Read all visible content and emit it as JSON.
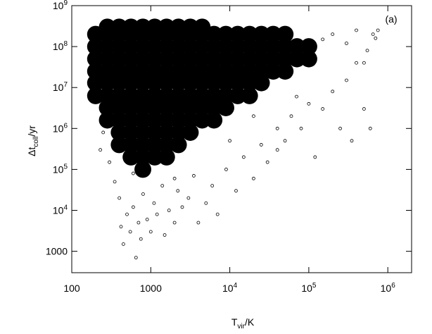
{
  "chart_data": {
    "type": "scatter",
    "xlabel": {
      "main": "T",
      "sub": "vir",
      "rest": "/K"
    },
    "ylabel": {
      "main": "Δt",
      "sub": "coll",
      "rest": "/yr"
    },
    "annotation": "(a)",
    "log_x": true,
    "log_y": true,
    "xlim": [
      100,
      2000000
    ],
    "ylim": [
      300,
      1000000000
    ],
    "xticks": [
      100,
      1000,
      {
        "value": 10000,
        "label": "10^4"
      },
      {
        "value": 100000,
        "label": "10^5"
      },
      {
        "value": 1000000,
        "label": "10^6"
      }
    ],
    "yticks": [
      1000,
      {
        "value": 10000,
        "label": "10^4"
      },
      {
        "value": 100000,
        "label": "10^5"
      },
      {
        "value": 1000000,
        "label": "10^6"
      },
      {
        "value": 10000000,
        "label": "10^7"
      },
      {
        "value": 100000000,
        "label": "10^8"
      },
      {
        "value": 1000000000,
        "label": "10^9"
      }
    ],
    "series": [
      {
        "color": "#000000",
        "marker": "filled",
        "marker_size": 12,
        "x": [
          200,
          200,
          200,
          200,
          200,
          200,
          282,
          282,
          282,
          282,
          282,
          282,
          282,
          282,
          282,
          398,
          398,
          398,
          398,
          398,
          398,
          398,
          398,
          398,
          398,
          398,
          562,
          562,
          562,
          562,
          562,
          562,
          562,
          562,
          562,
          562,
          562,
          562,
          794,
          794,
          794,
          794,
          794,
          794,
          794,
          794,
          794,
          794,
          794,
          794,
          794,
          1122,
          1122,
          1122,
          1122,
          1122,
          1122,
          1122,
          1122,
          1122,
          1122,
          1122,
          1122,
          1585,
          1585,
          1585,
          1585,
          1585,
          1585,
          1585,
          1585,
          1585,
          1585,
          1585,
          1585,
          2239,
          2239,
          2239,
          2239,
          2239,
          2239,
          2239,
          2239,
          2239,
          2239,
          2239,
          3162,
          3162,
          3162,
          3162,
          3162,
          3162,
          3162,
          3162,
          3162,
          3162,
          4467,
          4467,
          4467,
          4467,
          4467,
          4467,
          4467,
          4467,
          4467,
          6310,
          6310,
          6310,
          6310,
          6310,
          6310,
          6310,
          6310,
          8913,
          8913,
          8913,
          8913,
          8913,
          8913,
          8913,
          12589,
          12589,
          12589,
          12589,
          12589,
          12589,
          17783,
          17783,
          17783,
          17783,
          17783,
          17783,
          25119,
          25119,
          25119,
          25119,
          25119,
          35481,
          35481,
          35481,
          35481,
          50119,
          50119,
          50119,
          50119,
          70795,
          70795,
          100000,
          100000
        ],
        "values": [
          6300000,
          13000000,
          25000000,
          50000000,
          100000000,
          200000000,
          1600000,
          3200000,
          6300000,
          13000000,
          25000000,
          50000000,
          100000000,
          200000000,
          300000000,
          400000,
          800000,
          1600000,
          3200000,
          6300000,
          13000000,
          25000000,
          50000000,
          100000000,
          200000000,
          300000000,
          200000,
          400000,
          800000,
          1600000,
          3200000,
          6300000,
          13000000,
          25000000,
          50000000,
          100000000,
          200000000,
          300000000,
          100000,
          200000,
          400000,
          800000,
          1600000,
          3200000,
          6300000,
          13000000,
          25000000,
          50000000,
          100000000,
          200000000,
          300000000,
          200000,
          400000,
          800000,
          1600000,
          3200000,
          6300000,
          13000000,
          25000000,
          50000000,
          100000000,
          200000000,
          300000000,
          200000,
          400000,
          800000,
          1600000,
          3200000,
          6300000,
          13000000,
          25000000,
          50000000,
          100000000,
          200000000,
          300000000,
          400000,
          800000,
          1600000,
          3200000,
          6300000,
          13000000,
          25000000,
          50000000,
          100000000,
          200000000,
          300000000,
          800000,
          1600000,
          3200000,
          6300000,
          13000000,
          25000000,
          50000000,
          100000000,
          200000000,
          300000000,
          1600000,
          3200000,
          6300000,
          13000000,
          25000000,
          50000000,
          100000000,
          200000000,
          300000000,
          1600000,
          3200000,
          6300000,
          13000000,
          25000000,
          50000000,
          100000000,
          200000000,
          3200000,
          6300000,
          13000000,
          25000000,
          50000000,
          100000000,
          200000000,
          6300000,
          13000000,
          25000000,
          50000000,
          100000000,
          200000000,
          6300000,
          13000000,
          25000000,
          50000000,
          100000000,
          200000000,
          13000000,
          25000000,
          50000000,
          100000000,
          200000000,
          25000000,
          50000000,
          100000000,
          200000000,
          25000000,
          50000000,
          100000000,
          200000000,
          50000000,
          100000000,
          50000000,
          100000000
        ]
      },
      {
        "color": "#000000",
        "marker": "open",
        "marker_size": 2,
        "x": [
          230,
          250,
          300,
          350,
          400,
          420,
          450,
          500,
          550,
          600,
          650,
          700,
          750,
          800,
          900,
          1000,
          1100,
          1200,
          1400,
          1500,
          1700,
          2000,
          2200,
          2500,
          3000,
          3500,
          4000,
          5000,
          6000,
          7000,
          9000,
          12000,
          15000,
          20000,
          25000,
          30000,
          40000,
          50000,
          60000,
          80000,
          100000,
          120000,
          150000,
          200000,
          250000,
          300000,
          350000,
          400000,
          500000,
          550000,
          600000,
          650000,
          700000,
          750000,
          110000,
          150000,
          200000,
          300000,
          400000,
          180,
          190,
          600,
          2000,
          10000,
          40000,
          70000,
          20000,
          500000
        ],
        "values": [
          300000,
          800000,
          150000,
          50000,
          20000,
          4000,
          1500,
          8000,
          3000,
          12000,
          700,
          5000,
          2000,
          25000,
          6000,
          3000,
          15000,
          8000,
          40000,
          2500,
          10000,
          5000,
          30000,
          12000,
          20000,
          70000,
          5000,
          15000,
          40000,
          8000,
          100000,
          30000,
          200000,
          60000,
          400000,
          150000,
          1000000,
          500000,
          2000000,
          1000000,
          4000000,
          200000,
          3000000,
          8000000,
          1000000,
          15000000,
          500000,
          40000000,
          3000000,
          80000000,
          1000000,
          200000000,
          160000000,
          250000000,
          50000000,
          150000000,
          200000000,
          120000000,
          250000000,
          12000000,
          5000000,
          80000,
          60000,
          500000,
          300000,
          6000000,
          2000000,
          40000000
        ]
      }
    ]
  }
}
